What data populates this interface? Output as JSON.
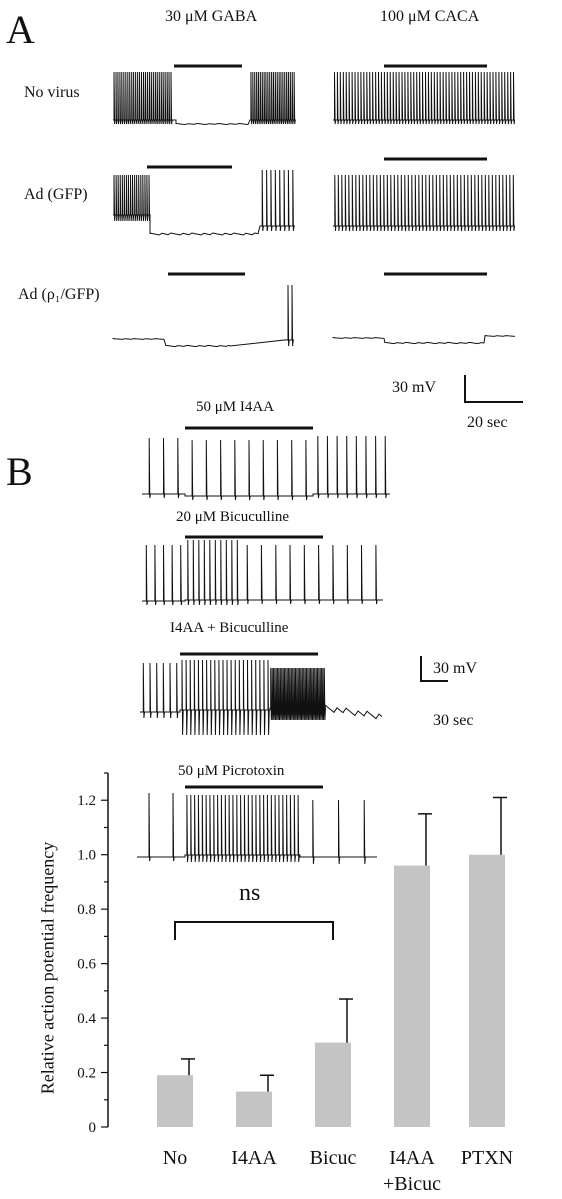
{
  "panel_a": {
    "letter": "A",
    "col_headers": [
      "30 μM GABA",
      "100 μM CACA"
    ],
    "row_labels": [
      "No virus",
      "Ad (GFP)",
      "Ad (ρ₁/GFP)"
    ],
    "scale_bar": {
      "voltage": "30 mV",
      "time": "20 sec"
    }
  },
  "panel_b": {
    "letter": "B",
    "trace_labels": [
      "50 μM I4AA",
      "20 μM Bicuculline",
      "I4AA + Bicuculline",
      "50 μM Picrotoxin"
    ],
    "scale_bar": {
      "voltage": "30 mV",
      "time": "30 sec"
    },
    "significance": "ns"
  },
  "chart_data": {
    "type": "bar",
    "ylabel": "Relative action potential frequency",
    "categories": [
      "No",
      "I4AA",
      "Bicuc",
      "I4AA\n+Bicuc",
      "PTXN"
    ],
    "category_lines": [
      [
        "No"
      ],
      [
        "I4AA"
      ],
      [
        "Bicuc"
      ],
      [
        "I4AA",
        "+Bicuc"
      ],
      [
        "PTXN"
      ]
    ],
    "values": [
      0.19,
      0.13,
      0.31,
      0.96,
      1.0
    ],
    "errors": [
      0.06,
      0.06,
      0.16,
      0.19,
      0.21
    ],
    "ylim": [
      0,
      1.3
    ],
    "yticks": [
      0,
      0.2,
      0.4,
      0.6,
      0.8,
      1.0,
      1.2
    ],
    "ytick_labels": [
      "0",
      "0.2",
      "0.4",
      "0.6",
      "0.8",
      "1.0",
      "1.2"
    ],
    "bar_color": "#c4c4c4"
  }
}
